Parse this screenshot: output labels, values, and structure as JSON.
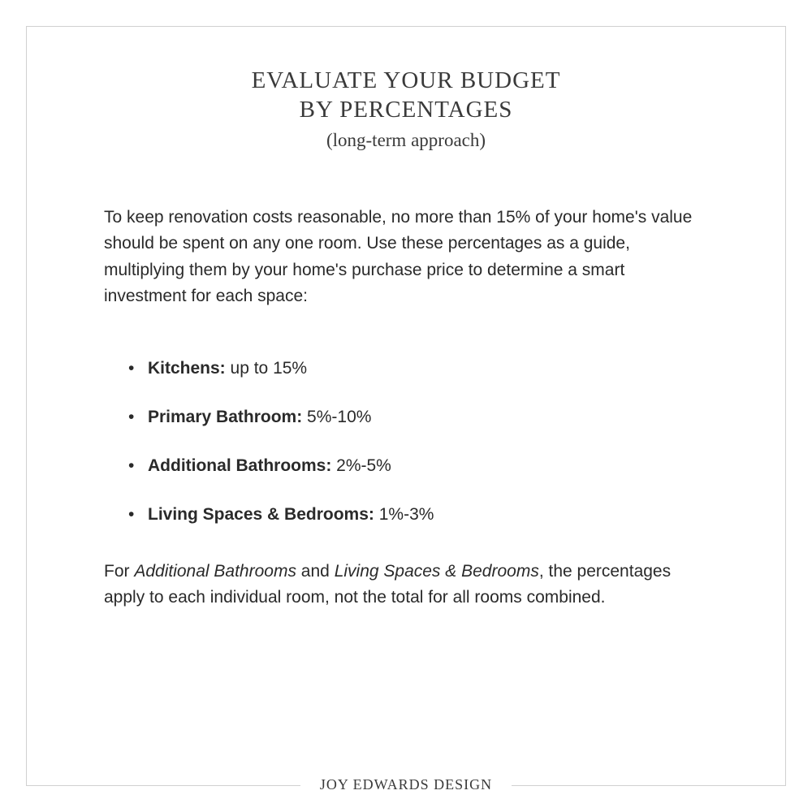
{
  "colors": {
    "background": "#ffffff",
    "border": "#d0d0d0",
    "heading": "#3a3a3a",
    "body": "#2a2a2a"
  },
  "typography": {
    "heading_family": "Georgia, serif",
    "body_family": "Helvetica, Arial, sans-serif",
    "title_fontsize": 29,
    "subtitle_fontsize": 23,
    "body_fontsize": 21,
    "brand_fontsize": 18
  },
  "header": {
    "title_line1": "EVALUATE YOUR BUDGET",
    "title_line2": "BY PERCENTAGES",
    "subtitle": "(long-term approach)"
  },
  "intro": "To keep renovation costs reasonable, no more than 15% of your home's value should be spent on any one room. Use these percentages as a guide, multiplying them by your home's purchase price to determine a smart investment for each space:",
  "items": [
    {
      "label": "Kitchens:",
      "value": " up to 15%"
    },
    {
      "label": "Primary Bathroom:",
      "value": " 5%-10%"
    },
    {
      "label": "Additional Bathrooms:",
      "value": " 2%-5%"
    },
    {
      "label": "Living Spaces & Bedrooms:",
      "value": " 1%-3%"
    }
  ],
  "note": {
    "prefix": "For ",
    "em1": "Additional Bathrooms",
    "mid": " and ",
    "em2": "Living Spaces & Bedrooms",
    "suffix": ", the percentages apply to each individual room, not the total for all rooms combined."
  },
  "brand": "JOY EDWARDS DESIGN"
}
